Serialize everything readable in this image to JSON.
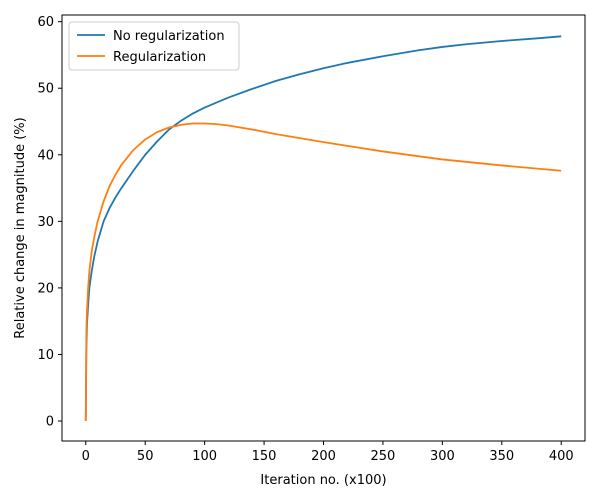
{
  "chart_data": {
    "type": "line",
    "title": "",
    "xlabel": "Iteration no. (x100)",
    "ylabel": "Relative change in magnitude (%)",
    "xlim": [
      -20,
      420
    ],
    "ylim": [
      -3,
      61
    ],
    "xticks": [
      0,
      50,
      100,
      150,
      200,
      250,
      300,
      350,
      400
    ],
    "yticks": [
      0,
      10,
      20,
      30,
      40,
      50,
      60
    ],
    "grid": false,
    "legend": "top-left",
    "series": [
      {
        "name": "No regularization",
        "color": "#1f77b4",
        "x": [
          0,
          0.5,
          1,
          2,
          3,
          5,
          7,
          10,
          15,
          20,
          25,
          30,
          40,
          50,
          60,
          70,
          80,
          90,
          100,
          120,
          140,
          160,
          180,
          200,
          220,
          250,
          280,
          300,
          320,
          350,
          380,
          400
        ],
        "y": [
          0,
          11,
          14.5,
          17.5,
          20,
          22.5,
          24.6,
          27,
          30,
          32,
          33.6,
          35,
          37.6,
          40,
          42,
          43.8,
          45.1,
          46.2,
          47.1,
          48.6,
          49.9,
          51.1,
          52.1,
          53,
          53.8,
          54.8,
          55.7,
          56.2,
          56.6,
          57.1,
          57.5,
          57.8
        ]
      },
      {
        "name": "Regularization",
        "color": "#ff7f0e",
        "x": [
          0,
          0.5,
          1,
          2,
          3,
          5,
          7,
          10,
          15,
          20,
          25,
          30,
          40,
          50,
          60,
          70,
          80,
          90,
          100,
          110,
          120,
          140,
          160,
          180,
          200,
          250,
          300,
          350,
          400
        ],
        "y": [
          0,
          13.5,
          16.5,
          20,
          22.5,
          25.5,
          27.5,
          30,
          33,
          35.3,
          37,
          38.5,
          40.7,
          42.3,
          43.4,
          44.1,
          44.5,
          44.7,
          44.7,
          44.6,
          44.4,
          43.8,
          43.1,
          42.5,
          41.9,
          40.5,
          39.3,
          38.4,
          37.6
        ]
      }
    ]
  }
}
